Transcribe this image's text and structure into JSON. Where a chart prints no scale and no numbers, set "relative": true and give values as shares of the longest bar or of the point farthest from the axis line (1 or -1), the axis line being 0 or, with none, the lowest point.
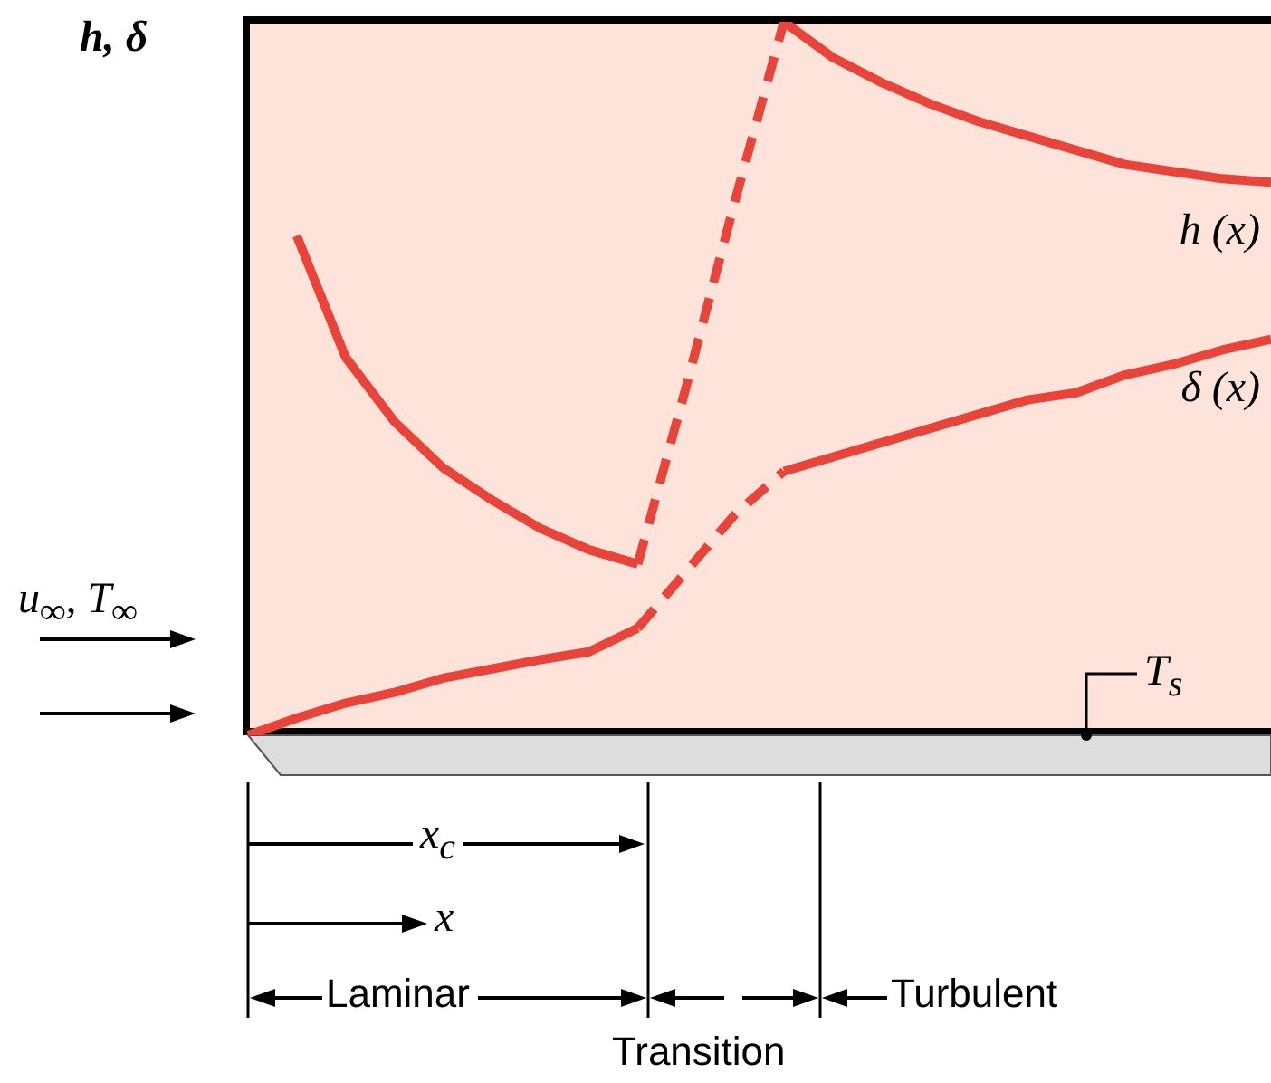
{
  "chart_data": {
    "type": "line",
    "relative": true,
    "ylabel": "h, δ",
    "categories": [
      null,
      null,
      null,
      null,
      null,
      null,
      null,
      null,
      null,
      null,
      null,
      null,
      null,
      null,
      null,
      null,
      null,
      null,
      null,
      null,
      null,
      null
    ],
    "series": [
      {
        "color": "#e8443a",
        "line_style": "solid",
        "values": [
          null,
          0.7,
          0.53,
          0.44,
          0.375,
          0.33,
          0.29,
          0.26,
          0.24,
          null,
          null,
          null,
          null,
          null,
          null,
          null,
          null,
          null,
          null,
          null,
          null,
          null
        ]
      },
      {
        "color": "#e8443a",
        "line_style": "dashed",
        "values": [
          null,
          null,
          null,
          null,
          null,
          null,
          null,
          null,
          0.24,
          0.49,
          0.75,
          1,
          null,
          null,
          null,
          null,
          null,
          null,
          null,
          null,
          null,
          null
        ]
      },
      {
        "name": "h (x)",
        "color": "#e8443a",
        "line_style": "solid",
        "values": [
          null,
          null,
          null,
          null,
          null,
          null,
          null,
          null,
          null,
          null,
          null,
          1,
          0.95,
          0.915,
          0.885,
          0.86,
          0.84,
          0.82,
          0.8,
          0.79,
          0.78,
          0.775
        ]
      },
      {
        "color": "#e8443a",
        "line_style": "solid",
        "values": [
          0,
          0.024,
          0.045,
          0.06,
          0.08,
          0.093,
          0.106,
          0.117,
          0.15,
          null,
          null,
          null,
          null,
          null,
          null,
          null,
          null,
          null,
          null,
          null,
          null,
          null
        ]
      },
      {
        "color": "#e8443a",
        "line_style": "dashed",
        "values": [
          null,
          null,
          null,
          null,
          null,
          null,
          null,
          null,
          0.15,
          0.23,
          0.31,
          0.37,
          null,
          null,
          null,
          null,
          null,
          null,
          null,
          null,
          null,
          null
        ]
      },
      {
        "name": "δ (x)",
        "color": "#e8443a",
        "line_style": "solid",
        "values": [
          null,
          null,
          null,
          null,
          null,
          null,
          null,
          null,
          null,
          null,
          null,
          0.37,
          0.39,
          0.41,
          0.43,
          0.45,
          0.47,
          0.48,
          0.505,
          0.52,
          0.54,
          0.555
        ]
      }
    ],
    "annotations": [
      "u$_{∞}$, T$_{∞}$",
      "T$_{s}$",
      "x$_{c}$",
      "x",
      "Laminar",
      "Transition",
      "Turbulent"
    ],
    "grid": false,
    "marker": "none"
  }
}
